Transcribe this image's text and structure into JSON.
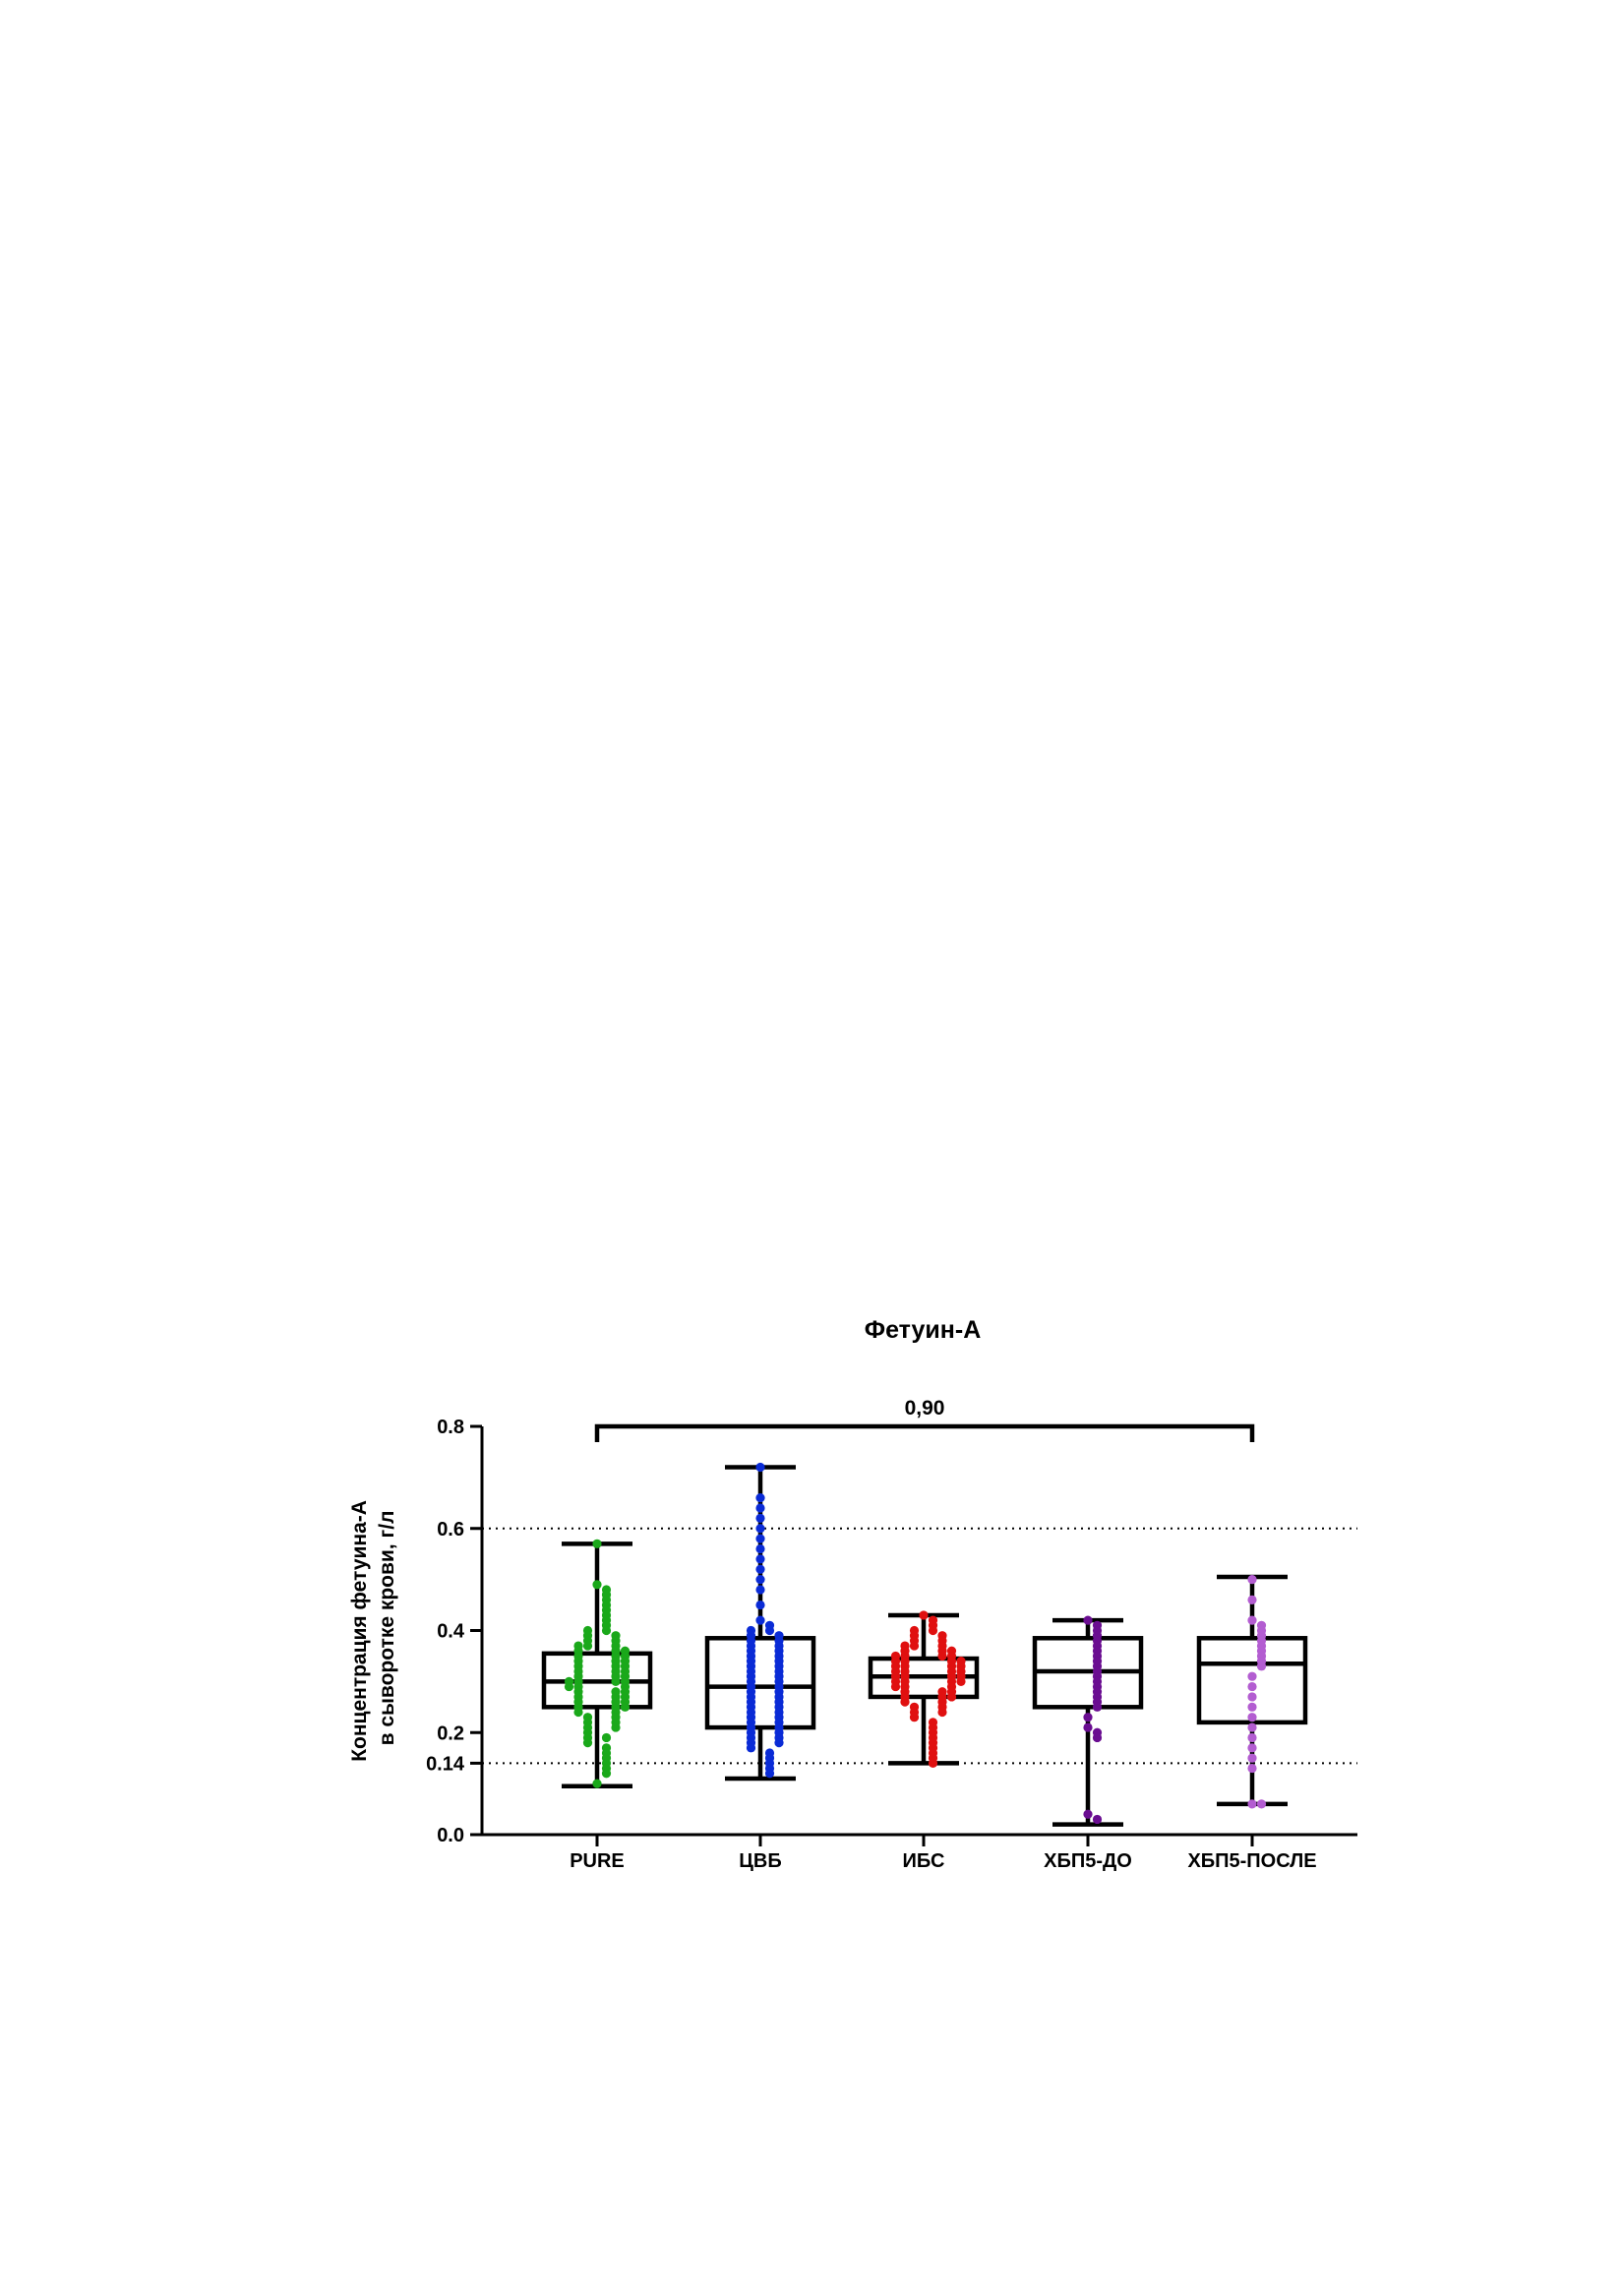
{
  "chart_data": {
    "type": "box",
    "title": "Фетуин-А",
    "ylabel_lines": [
      "Концентрация фетуина-А",
      "в сыворотке крови, г/л"
    ],
    "xlabel": "",
    "ylim": [
      0.0,
      0.8
    ],
    "yticks": [
      "0.0",
      "0.14",
      "0.2",
      "0.4",
      "0.6",
      "0.8"
    ],
    "reference_lines": [
      0.14,
      0.6
    ],
    "grid": false,
    "comparison": {
      "from": "PURE",
      "to": "ХБП5-ПОСЛЕ",
      "label": "0,90",
      "y": 0.8
    },
    "categories": [
      "PURE",
      "ЦВБ",
      "ИБС",
      "ХБП5-ДО",
      "ХБП5-ПОСЛЕ"
    ],
    "series": [
      {
        "category": "PURE",
        "color": "#1aa81a",
        "stats": {
          "min": 0.095,
          "q1": 0.25,
          "median": 0.3,
          "q3": 0.355,
          "max": 0.57
        },
        "points": [
          0.57,
          0.49,
          0.48,
          0.47,
          0.46,
          0.45,
          0.44,
          0.43,
          0.42,
          0.41,
          0.4,
          0.4,
          0.39,
          0.39,
          0.38,
          0.38,
          0.37,
          0.37,
          0.37,
          0.36,
          0.36,
          0.36,
          0.35,
          0.35,
          0.35,
          0.34,
          0.34,
          0.34,
          0.33,
          0.33,
          0.33,
          0.32,
          0.32,
          0.32,
          0.31,
          0.31,
          0.31,
          0.3,
          0.3,
          0.3,
          0.3,
          0.29,
          0.29,
          0.29,
          0.28,
          0.28,
          0.28,
          0.27,
          0.27,
          0.27,
          0.26,
          0.26,
          0.26,
          0.25,
          0.25,
          0.25,
          0.24,
          0.24,
          0.23,
          0.23,
          0.22,
          0.22,
          0.21,
          0.21,
          0.2,
          0.19,
          0.19,
          0.18,
          0.17,
          0.16,
          0.15,
          0.14,
          0.13,
          0.12,
          0.1
        ]
      },
      {
        "category": "ЦВБ",
        "color": "#0a2bd6",
        "stats": {
          "min": 0.11,
          "q1": 0.21,
          "median": 0.29,
          "q3": 0.385,
          "max": 0.72
        },
        "points": [
          0.72,
          0.66,
          0.64,
          0.62,
          0.6,
          0.58,
          0.56,
          0.54,
          0.52,
          0.5,
          0.48,
          0.45,
          0.42,
          0.41,
          0.4,
          0.4,
          0.39,
          0.39,
          0.38,
          0.38,
          0.37,
          0.37,
          0.36,
          0.36,
          0.35,
          0.35,
          0.34,
          0.34,
          0.33,
          0.33,
          0.32,
          0.32,
          0.31,
          0.31,
          0.3,
          0.3,
          0.29,
          0.29,
          0.28,
          0.28,
          0.27,
          0.27,
          0.26,
          0.26,
          0.25,
          0.25,
          0.24,
          0.24,
          0.23,
          0.23,
          0.22,
          0.22,
          0.21,
          0.21,
          0.2,
          0.2,
          0.19,
          0.19,
          0.18,
          0.18,
          0.17,
          0.16,
          0.15,
          0.14,
          0.13,
          0.12
        ]
      },
      {
        "category": "ИБС",
        "color": "#e01010",
        "stats": {
          "min": 0.14,
          "q1": 0.27,
          "median": 0.31,
          "q3": 0.345,
          "max": 0.43
        },
        "points": [
          0.43,
          0.42,
          0.41,
          0.4,
          0.4,
          0.39,
          0.39,
          0.38,
          0.38,
          0.37,
          0.37,
          0.37,
          0.36,
          0.36,
          0.36,
          0.35,
          0.35,
          0.35,
          0.35,
          0.34,
          0.34,
          0.34,
          0.34,
          0.33,
          0.33,
          0.33,
          0.33,
          0.32,
          0.32,
          0.32,
          0.32,
          0.31,
          0.31,
          0.31,
          0.31,
          0.3,
          0.3,
          0.3,
          0.3,
          0.29,
          0.29,
          0.29,
          0.28,
          0.28,
          0.28,
          0.27,
          0.27,
          0.27,
          0.26,
          0.26,
          0.25,
          0.25,
          0.24,
          0.24,
          0.23,
          0.22,
          0.21,
          0.2,
          0.19,
          0.18,
          0.17,
          0.16,
          0.15,
          0.14
        ]
      },
      {
        "category": "ХБП5-ДО",
        "color": "#6a0d91",
        "stats": {
          "min": 0.02,
          "q1": 0.25,
          "median": 0.32,
          "q3": 0.385,
          "max": 0.42
        },
        "points": [
          0.42,
          0.41,
          0.4,
          0.39,
          0.38,
          0.37,
          0.36,
          0.35,
          0.34,
          0.33,
          0.32,
          0.31,
          0.3,
          0.29,
          0.28,
          0.27,
          0.26,
          0.25,
          0.23,
          0.21,
          0.2,
          0.19,
          0.04,
          0.03
        ]
      },
      {
        "category": "ХБП5-ПОСЛЕ",
        "color": "#b35dd1",
        "stats": {
          "min": 0.06,
          "q1": 0.22,
          "median": 0.335,
          "q3": 0.385,
          "max": 0.505
        },
        "points": [
          0.5,
          0.46,
          0.42,
          0.41,
          0.4,
          0.39,
          0.38,
          0.37,
          0.36,
          0.35,
          0.34,
          0.33,
          0.31,
          0.29,
          0.27,
          0.25,
          0.23,
          0.21,
          0.19,
          0.17,
          0.15,
          0.13,
          0.06,
          0.06
        ]
      }
    ]
  }
}
